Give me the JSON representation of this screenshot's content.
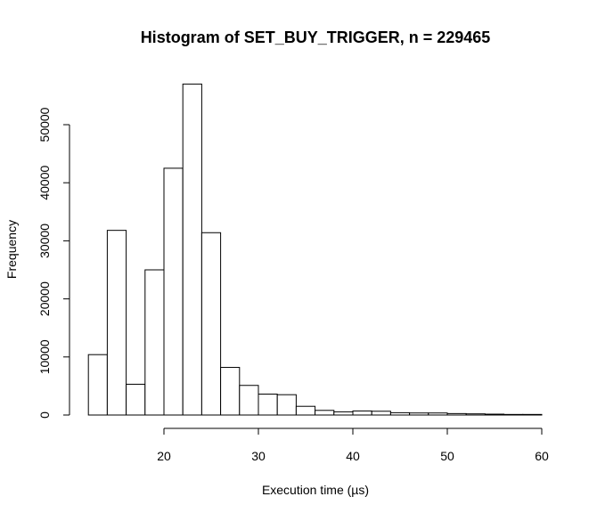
{
  "chart_data": {
    "type": "bar",
    "title": "Histogram of SET_BUY_TRIGGER, n = 229465",
    "xlabel": "Execution time (µs)",
    "ylabel": "Frequency",
    "xlim": [
      10,
      60
    ],
    "ylim": [
      0,
      60000
    ],
    "x_ticks": [
      20,
      30,
      40,
      50,
      60
    ],
    "y_ticks": [
      0,
      10000,
      20000,
      30000,
      40000,
      50000
    ],
    "bin_width": 2,
    "bins": [
      {
        "start": 12,
        "end": 14,
        "value": 10400
      },
      {
        "start": 14,
        "end": 16,
        "value": 31800
      },
      {
        "start": 16,
        "end": 18,
        "value": 5300
      },
      {
        "start": 18,
        "end": 20,
        "value": 25000
      },
      {
        "start": 20,
        "end": 22,
        "value": 42500
      },
      {
        "start": 22,
        "end": 24,
        "value": 57000
      },
      {
        "start": 24,
        "end": 26,
        "value": 31400
      },
      {
        "start": 26,
        "end": 28,
        "value": 8200
      },
      {
        "start": 28,
        "end": 30,
        "value": 5100
      },
      {
        "start": 30,
        "end": 32,
        "value": 3600
      },
      {
        "start": 32,
        "end": 34,
        "value": 3500
      },
      {
        "start": 34,
        "end": 36,
        "value": 1500
      },
      {
        "start": 36,
        "end": 38,
        "value": 800
      },
      {
        "start": 38,
        "end": 40,
        "value": 550
      },
      {
        "start": 40,
        "end": 42,
        "value": 700
      },
      {
        "start": 42,
        "end": 44,
        "value": 650
      },
      {
        "start": 44,
        "end": 46,
        "value": 400
      },
      {
        "start": 46,
        "end": 48,
        "value": 350
      },
      {
        "start": 48,
        "end": 50,
        "value": 350
      },
      {
        "start": 50,
        "end": 52,
        "value": 250
      },
      {
        "start": 52,
        "end": 54,
        "value": 200
      },
      {
        "start": 54,
        "end": 56,
        "value": 150
      },
      {
        "start": 56,
        "end": 58,
        "value": 100
      },
      {
        "start": 58,
        "end": 60,
        "value": 100
      }
    ],
    "grid": false,
    "legend": "none",
    "bar_fill": "#ffffff",
    "bar_stroke": "#000000"
  }
}
